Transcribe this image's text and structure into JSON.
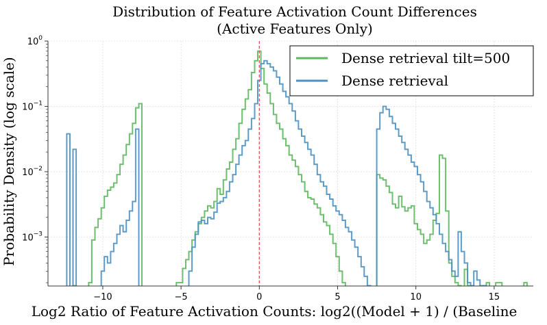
{
  "chart_data": {
    "type": "histogram-step",
    "title_line1": "Distribution of Feature Activation Count Differences",
    "title_line2": "(Active Features Only)",
    "xlabel": "Log2 Ratio of Feature Activation Counts: log2((Model + 1) / (Baseline",
    "ylabel": "Probability Density (log scale)",
    "xlim": [
      -13.5,
      17.5
    ],
    "ylim_log10": [
      -3.75,
      0
    ],
    "yscale": "log",
    "x_ticks": [
      -10,
      -5,
      0,
      5,
      10,
      15
    ],
    "x_tick_labels": [
      "−10",
      "−5",
      "0",
      "5",
      "10",
      "15"
    ],
    "y_ticks_exp": [
      0,
      -1,
      -2,
      -3
    ],
    "grid": true,
    "reference_line_x": 0,
    "legend_position": "top-right",
    "series": [
      {
        "name": "Dense retrieval tilt=500",
        "color": "#5cb85c",
        "points": [
          [
            -11.8,
            0.00018
          ],
          [
            -11.8,
            0.00018
          ],
          [
            -10.8,
            0.0002
          ],
          [
            -10.6,
            0.0009
          ],
          [
            -10.4,
            0.0014
          ],
          [
            -10.2,
            0.0019
          ],
          [
            -10.0,
            0.0028
          ],
          [
            -9.8,
            0.0042
          ],
          [
            -9.6,
            0.0052
          ],
          [
            -9.4,
            0.0058
          ],
          [
            -9.2,
            0.0067
          ],
          [
            -9.0,
            0.009
          ],
          [
            -8.8,
            0.013
          ],
          [
            -8.6,
            0.018
          ],
          [
            -8.4,
            0.026
          ],
          [
            -8.2,
            0.038
          ],
          [
            -8.0,
            0.055
          ],
          [
            -7.8,
            0.095
          ],
          [
            -7.6,
            0.11
          ],
          [
            -5.2,
            0.0002
          ],
          [
            -5.0,
            0.0002
          ],
          [
            -4.8,
            0.00033
          ],
          [
            -4.6,
            0.00045
          ],
          [
            -4.4,
            0.0006
          ],
          [
            -4.2,
            0.0009
          ],
          [
            -4.0,
            0.0012
          ],
          [
            -3.8,
            0.0016
          ],
          [
            -3.6,
            0.002
          ],
          [
            -3.4,
            0.0025
          ],
          [
            -3.2,
            0.003
          ],
          [
            -3.0,
            0.0028
          ],
          [
            -2.8,
            0.0035
          ],
          [
            -2.6,
            0.0055
          ],
          [
            -2.4,
            0.0045
          ],
          [
            -2.2,
            0.0075
          ],
          [
            -2.0,
            0.011
          ],
          [
            -1.8,
            0.014
          ],
          [
            -1.6,
            0.022
          ],
          [
            -1.4,
            0.032
          ],
          [
            -1.2,
            0.055
          ],
          [
            -1.0,
            0.09
          ],
          [
            -0.8,
            0.13
          ],
          [
            -0.6,
            0.18
          ],
          [
            -0.4,
            0.33
          ],
          [
            -0.2,
            0.5
          ],
          [
            0.0,
            0.7
          ],
          [
            0.2,
            0.38
          ],
          [
            0.4,
            0.22
          ],
          [
            0.6,
            0.16
          ],
          [
            0.8,
            0.11
          ],
          [
            1.0,
            0.075
          ],
          [
            1.2,
            0.055
          ],
          [
            1.4,
            0.045
          ],
          [
            1.6,
            0.032
          ],
          [
            1.8,
            0.025
          ],
          [
            2.0,
            0.018
          ],
          [
            2.2,
            0.015
          ],
          [
            2.4,
            0.012
          ],
          [
            2.6,
            0.009
          ],
          [
            2.8,
            0.007
          ],
          [
            3.0,
            0.005
          ],
          [
            3.2,
            0.004
          ],
          [
            3.4,
            0.0038
          ],
          [
            3.6,
            0.0032
          ],
          [
            3.8,
            0.0028
          ],
          [
            4.0,
            0.0022
          ],
          [
            4.2,
            0.0017
          ],
          [
            4.4,
            0.0015
          ],
          [
            4.6,
            0.0011
          ],
          [
            4.8,
            0.0008
          ],
          [
            5.0,
            0.0005
          ],
          [
            5.2,
            0.0003
          ],
          [
            5.4,
            0.0002
          ],
          [
            7.6,
            0.009
          ],
          [
            7.8,
            0.008
          ],
          [
            8.0,
            0.0075
          ],
          [
            8.2,
            0.006
          ],
          [
            8.4,
            0.0048
          ],
          [
            8.6,
            0.0032
          ],
          [
            8.8,
            0.0028
          ],
          [
            9.0,
            0.0042
          ],
          [
            9.2,
            0.0029
          ],
          [
            9.4,
            0.0025
          ],
          [
            9.6,
            0.0028
          ],
          [
            9.8,
            0.003
          ],
          [
            10.0,
            0.0016
          ],
          [
            10.2,
            0.0013
          ],
          [
            10.4,
            0.0011
          ],
          [
            10.6,
            0.0008
          ],
          [
            10.8,
            0.0009
          ],
          [
            11.0,
            0.0011
          ],
          [
            11.2,
            0.0018
          ],
          [
            11.4,
            0.0023
          ],
          [
            11.6,
            0.018
          ],
          [
            11.8,
            0.016
          ],
          [
            12.0,
            0.0025
          ],
          [
            12.2,
            0.0004
          ],
          [
            12.4,
            0.00025
          ],
          [
            12.6,
            0.0002
          ],
          [
            12.8,
            0.00018
          ],
          [
            13.2,
            0.00032
          ],
          [
            13.4,
            0.00018
          ],
          [
            14.2,
            0.00018
          ],
          [
            14.6,
            0.0002
          ],
          [
            15.2,
            0.0002
          ],
          [
            15.4,
            0.0002
          ],
          [
            17.0,
            0.0002
          ]
        ]
      },
      {
        "name": "Dense retrieval",
        "color": "#4a90c2",
        "points": [
          [
            -12.2,
            0.038
          ],
          [
            -11.8,
            0.022
          ],
          [
            -10.0,
            0.0003
          ],
          [
            -9.8,
            0.0005
          ],
          [
            -9.6,
            0.0004
          ],
          [
            -9.4,
            0.0006
          ],
          [
            -9.2,
            0.0008
          ],
          [
            -9.0,
            0.0011
          ],
          [
            -8.8,
            0.0015
          ],
          [
            -8.6,
            0.0012
          ],
          [
            -8.4,
            0.0018
          ],
          [
            -8.2,
            0.0025
          ],
          [
            -8.0,
            0.0035
          ],
          [
            -7.8,
            0.045
          ],
          [
            -4.4,
            0.0003
          ],
          [
            -4.2,
            0.0007
          ],
          [
            -4.0,
            0.0011
          ],
          [
            -3.8,
            0.0017
          ],
          [
            -3.6,
            0.0018
          ],
          [
            -3.4,
            0.0016
          ],
          [
            -3.2,
            0.002
          ],
          [
            -3.0,
            0.0019
          ],
          [
            -2.8,
            0.0024
          ],
          [
            -2.6,
            0.0033
          ],
          [
            -2.4,
            0.0035
          ],
          [
            -2.2,
            0.004
          ],
          [
            -2.0,
            0.005
          ],
          [
            -1.8,
            0.007
          ],
          [
            -1.6,
            0.009
          ],
          [
            -1.4,
            0.013
          ],
          [
            -1.2,
            0.018
          ],
          [
            -1.0,
            0.025
          ],
          [
            -0.8,
            0.03
          ],
          [
            -0.6,
            0.045
          ],
          [
            -0.4,
            0.065
          ],
          [
            -0.2,
            0.11
          ],
          [
            0.0,
            0.25
          ],
          [
            0.2,
            0.45
          ],
          [
            0.4,
            0.5
          ],
          [
            0.6,
            0.45
          ],
          [
            0.8,
            0.4
          ],
          [
            1.0,
            0.35
          ],
          [
            1.2,
            0.28
          ],
          [
            1.4,
            0.22
          ],
          [
            1.6,
            0.17
          ],
          [
            1.8,
            0.14
          ],
          [
            2.0,
            0.11
          ],
          [
            2.2,
            0.085
          ],
          [
            2.4,
            0.06
          ],
          [
            2.6,
            0.045
          ],
          [
            2.8,
            0.035
          ],
          [
            3.0,
            0.028
          ],
          [
            3.2,
            0.022
          ],
          [
            3.4,
            0.018
          ],
          [
            3.6,
            0.013
          ],
          [
            3.8,
            0.009
          ],
          [
            4.0,
            0.007
          ],
          [
            4.2,
            0.006
          ],
          [
            4.4,
            0.0045
          ],
          [
            4.6,
            0.0038
          ],
          [
            4.8,
            0.003
          ],
          [
            5.0,
            0.0025
          ],
          [
            5.2,
            0.0022
          ],
          [
            5.4,
            0.0018
          ],
          [
            5.6,
            0.0014
          ],
          [
            5.8,
            0.0012
          ],
          [
            6.0,
            0.0009
          ],
          [
            6.2,
            0.0007
          ],
          [
            6.4,
            0.0005
          ],
          [
            6.6,
            0.00035
          ],
          [
            6.8,
            0.00025
          ],
          [
            7.0,
            0.00018
          ],
          [
            7.6,
            0.045
          ],
          [
            7.8,
            0.08
          ],
          [
            8.0,
            0.1
          ],
          [
            8.2,
            0.09
          ],
          [
            8.4,
            0.07
          ],
          [
            8.6,
            0.055
          ],
          [
            8.8,
            0.045
          ],
          [
            9.0,
            0.035
          ],
          [
            9.2,
            0.028
          ],
          [
            9.4,
            0.022
          ],
          [
            9.6,
            0.018
          ],
          [
            9.8,
            0.014
          ],
          [
            10.0,
            0.012
          ],
          [
            10.2,
            0.009
          ],
          [
            10.4,
            0.007
          ],
          [
            10.6,
            0.005
          ],
          [
            10.8,
            0.0035
          ],
          [
            11.0,
            0.0028
          ],
          [
            11.2,
            0.0022
          ],
          [
            11.4,
            0.0016
          ],
          [
            11.6,
            0.0011
          ],
          [
            11.8,
            0.0008
          ],
          [
            12.0,
            0.0006
          ],
          [
            12.2,
            0.00045
          ],
          [
            12.4,
            0.0003
          ],
          [
            12.6,
            0.00025
          ],
          [
            12.8,
            0.0012
          ],
          [
            13.0,
            0.0006
          ],
          [
            13.2,
            0.0004
          ],
          [
            13.4,
            0.0002
          ],
          [
            13.6,
            0.00018
          ],
          [
            13.8,
            0.0003
          ],
          [
            14.0,
            0.00022
          ],
          [
            14.4,
            0.00018
          ]
        ]
      }
    ]
  }
}
